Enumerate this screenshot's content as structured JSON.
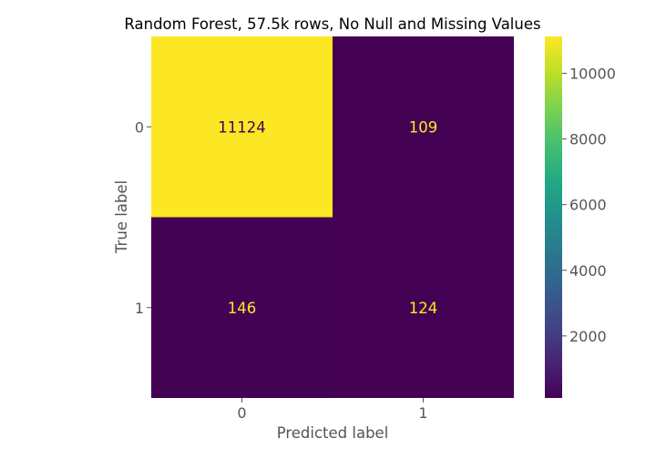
{
  "chart_data": {
    "type": "heatmap",
    "title": "Random Forest, 57.5k rows, No Null and Missing Values",
    "xlabel": "Predicted label",
    "ylabel": "True label",
    "x_categories": [
      "0",
      "1"
    ],
    "y_categories": [
      "0",
      "1"
    ],
    "values": [
      [
        11124,
        109
      ],
      [
        146,
        124
      ]
    ],
    "colormap": "viridis",
    "colorbar": {
      "range": [
        109,
        11124
      ],
      "ticks": [
        "2000",
        "4000",
        "6000",
        "8000",
        "10000"
      ]
    },
    "colors": {
      "high": "#fde725",
      "low": "#440154",
      "text_on_low": "#fde725",
      "text_on_high": "#440154"
    }
  }
}
